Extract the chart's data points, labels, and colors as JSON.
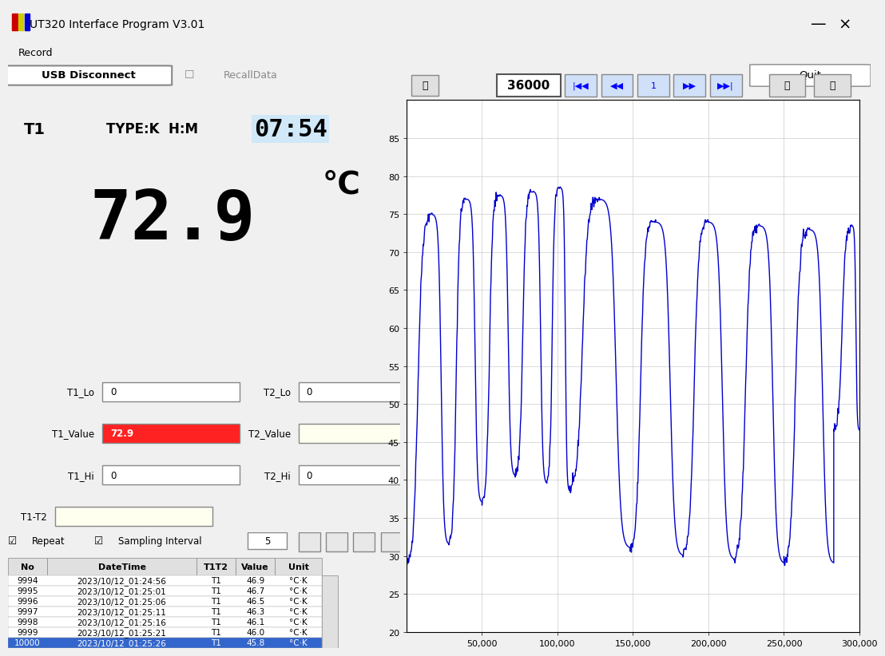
{
  "title_bar": "UT320 Interface Program V3.01",
  "menu_item": "Record",
  "btn_usb": "USB Disconnect",
  "btn_recall": "RecallData",
  "btn_quit": "Quit",
  "t1_label": "T1",
  "type_label": "TYPE:K  H:M",
  "time_display": "07:54",
  "temp_display": "72.9",
  "degree_symbol": "°C",
  "t1_lo_label": "T1_Lo",
  "t1_lo_value": "0",
  "t2_lo_label": "T2_Lo",
  "t2_lo_value": "0",
  "t1_val_label": "T1_Value",
  "t1_val_value": "72.9",
  "t2_val_label": "T2_Value",
  "t2_val_value": "",
  "t1_hi_label": "T1_Hi",
  "t1_hi_value": "0",
  "t2_hi_label": "T2_Hi",
  "t2_hi_value": "0",
  "t1t2_label": "T1-T2",
  "t1t2_value": "",
  "repeat_label": "Repeat",
  "sampling_label": "Sampling Interval",
  "sampling_value": "5",
  "counter_display": "36000",
  "table_headers": [
    "No",
    "DateTime",
    "T1T2",
    "Value",
    "Unit"
  ],
  "table_rows": [
    [
      "9994",
      "2023/10/12_01:24:56",
      "T1",
      "46.9",
      "°C·K"
    ],
    [
      "9995",
      "2023/10/12_01:25:01",
      "T1",
      "46.7",
      "°C·K"
    ],
    [
      "9996",
      "2023/10/12_01:25:06",
      "T1",
      "46.5",
      "°C·K"
    ],
    [
      "9997",
      "2023/10/12_01:25:11",
      "T1",
      "46.3",
      "°C·K"
    ],
    [
      "9998",
      "2023/10/12_01:25:16",
      "T1",
      "46.1",
      "°C·K"
    ],
    [
      "9999",
      "2023/10/12_01:25:21",
      "T1",
      "46.0",
      "°C·K"
    ],
    [
      "10000",
      "2023/10/12_01:25:26",
      "T1",
      "45.8",
      "°C·K"
    ]
  ],
  "highlighted_row": 6,
  "graph_bg": "#ffffff",
  "graph_line_color": "#0000cc",
  "graph_ylim": [
    20,
    90
  ],
  "graph_yticks": [
    20,
    25,
    30,
    35,
    40,
    45,
    50,
    55,
    60,
    65,
    70,
    75,
    80,
    85
  ],
  "graph_xlim": [
    0,
    300000
  ],
  "graph_xticks": [
    50000,
    100000,
    150000,
    200000,
    250000,
    300000
  ],
  "graph_xtick_labels": [
    "50,000",
    "100,000",
    "150,000",
    "200,000",
    "250,000",
    "300,000"
  ],
  "bg_color_main": "#f0f0f0",
  "bg_color_display": "#d0e8f8",
  "title_bg": "#ffffff",
  "btn_color": "#e0e0e0"
}
